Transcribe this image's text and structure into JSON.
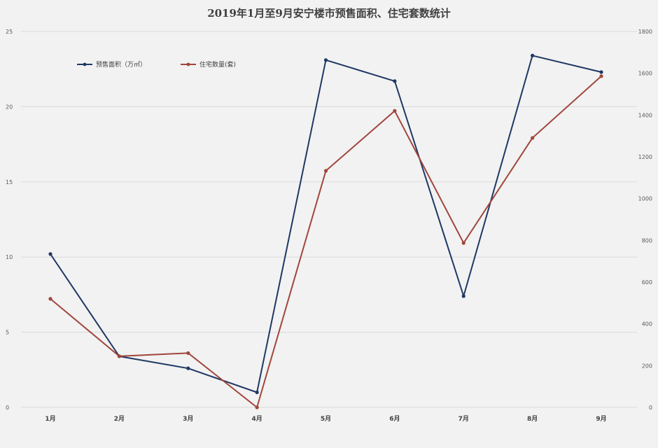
{
  "chart_data": {
    "type": "line",
    "title": "2019年1月至9月安宁楼市预售面积、住宅套数统计",
    "categories": [
      "1月",
      "2月",
      "3月",
      "4月",
      "5月",
      "6月",
      "7月",
      "8月",
      "9月"
    ],
    "y_left": {
      "ticks": [
        "0",
        "5",
        "10",
        "15",
        "20",
        "25"
      ],
      "ylim": [
        0,
        25
      ]
    },
    "y_right": {
      "ticks": [
        "0",
        "200",
        "400",
        "600",
        "800",
        "1000",
        "1200",
        "1400",
        "1600",
        "1800"
      ],
      "ylim": [
        0,
        1800
      ]
    },
    "grid": true,
    "legend_position": "top-left",
    "series": [
      {
        "name": "预售面积（万㎡）",
        "axis": "left",
        "color": "#1f3864",
        "values": [
          10.2,
          3.4,
          2.6,
          1.0,
          23.1,
          21.7,
          7.4,
          23.4,
          22.3
        ]
      },
      {
        "name": "住宅数量(套)",
        "axis": "right",
        "color": "#a0463c",
        "values": [
          520,
          245,
          260,
          0,
          1133,
          1420,
          787,
          1290,
          1586
        ]
      }
    ]
  }
}
